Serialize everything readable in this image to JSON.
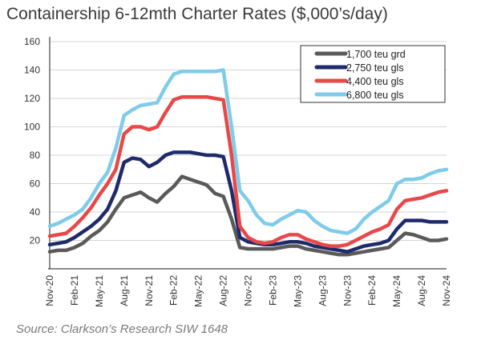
{
  "chart_data": {
    "type": "line",
    "title": "Containership 6-12mth Charter Rates ($,000’s/day)",
    "source": "Source: Clarkson’s Research SIW 1648",
    "xlabel": "",
    "ylabel": "",
    "ylim": [
      0,
      160
    ],
    "yticks": [
      "20",
      "40",
      "60",
      "80",
      "100",
      "120",
      "140",
      "160"
    ],
    "x_start": "Nov-20",
    "x_end": "Nov-24",
    "x_frequency": "monthly",
    "xtick_labels": [
      "Nov-20",
      "Feb-21",
      "May-21",
      "Aug-21",
      "Nov-21",
      "Feb-22",
      "May-22",
      "Aug-22",
      "Nov-22",
      "Feb-23",
      "May-23",
      "Aug-23",
      "Nov-23",
      "Feb-24",
      "May-24",
      "Aug-24",
      "Nov-24"
    ],
    "grid": true,
    "legend_position": "top-right",
    "series": [
      {
        "name": "1,700 teu grd",
        "color": "#5a5a5a",
        "values": [
          12,
          13,
          13,
          15,
          18,
          23,
          27,
          33,
          42,
          50,
          52,
          54,
          50,
          47,
          53,
          58,
          65,
          63,
          61,
          59,
          53,
          51,
          35,
          15,
          14,
          14,
          14,
          14,
          15,
          16,
          16,
          14,
          13,
          12,
          11,
          10,
          10,
          11,
          12,
          13,
          14,
          15,
          20,
          25,
          24,
          22,
          20,
          20,
          21
        ]
      },
      {
        "name": "2,750 teu gls",
        "color": "#1f2a6b",
        "values": [
          17,
          18,
          19,
          22,
          26,
          30,
          35,
          42,
          55,
          75,
          78,
          77,
          72,
          75,
          80,
          82,
          82,
          82,
          81,
          80,
          80,
          79,
          55,
          22,
          19,
          18,
          17,
          17,
          18,
          19,
          19,
          18,
          16,
          15,
          14,
          13,
          12,
          14,
          16,
          17,
          18,
          20,
          28,
          34,
          34,
          34,
          33,
          33,
          33
        ]
      },
      {
        "name": "4,400 teu gls",
        "color": "#e84848",
        "values": [
          23,
          24,
          25,
          30,
          36,
          43,
          52,
          60,
          70,
          95,
          100,
          100,
          98,
          100,
          110,
          119,
          121,
          121,
          121,
          121,
          120,
          119,
          80,
          30,
          22,
          19,
          18,
          19,
          22,
          24,
          24,
          21,
          19,
          17,
          16,
          16,
          17,
          20,
          23,
          26,
          28,
          31,
          42,
          48,
          49,
          50,
          52,
          54,
          55
        ]
      },
      {
        "name": "6,800 teu gls",
        "color": "#7fcbea",
        "values": [
          30,
          32,
          35,
          38,
          42,
          50,
          60,
          68,
          85,
          108,
          112,
          115,
          116,
          117,
          128,
          137,
          139,
          139,
          139,
          139,
          139,
          140,
          100,
          55,
          48,
          38,
          32,
          31,
          35,
          38,
          41,
          40,
          34,
          30,
          27,
          26,
          25,
          28,
          35,
          40,
          44,
          48,
          60,
          63,
          63,
          64,
          67,
          69,
          70
        ]
      }
    ]
  }
}
